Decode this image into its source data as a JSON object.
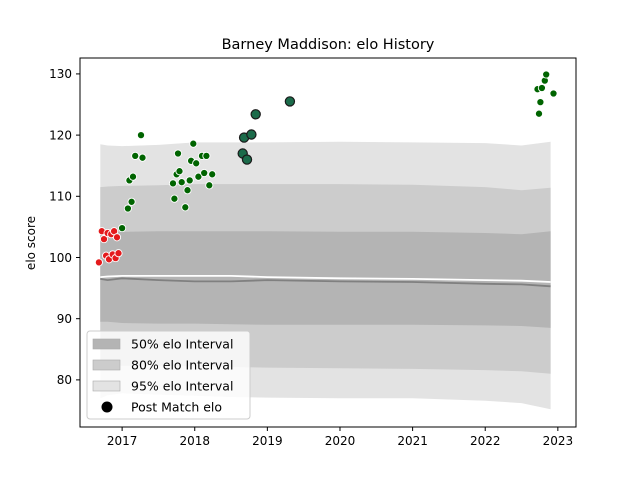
{
  "chart_data": {
    "type": "scatter",
    "title": "Barney Maddison: elo History",
    "xlabel": "",
    "ylabel": "elo score",
    "xlim": [
      2016.42,
      2023.25
    ],
    "ylim": [
      72.3,
      132.6
    ],
    "xticks": [
      2017,
      2018,
      2019,
      2020,
      2021,
      2022,
      2023
    ],
    "xtick_labels": [
      "2017",
      "2018",
      "2019",
      "2020",
      "2021",
      "2022",
      "2023"
    ],
    "yticks": [
      80,
      90,
      100,
      110,
      120,
      130
    ],
    "ytick_labels": [
      "80",
      "90",
      "100",
      "110",
      "120",
      "130"
    ],
    "grid": false,
    "legend_position": "lower-left",
    "legend": [
      {
        "label": "50% elo Interval",
        "kind": "band50"
      },
      {
        "label": "80% elo Interval",
        "kind": "band80"
      },
      {
        "label": "95% elo Interval",
        "kind": "band95"
      },
      {
        "label": "Post Match elo",
        "kind": "marker"
      }
    ],
    "colors": {
      "band50": "#b4b4b4",
      "band80": "#cccccc",
      "band95": "#e3e3e3",
      "median_line": "#808080",
      "mean_line": "#ffffff",
      "loss": "#e41a1c",
      "win": "#006400",
      "big_win": "#1b6b4a"
    },
    "bands": {
      "x": [
        2016.7,
        2016.8,
        2017.0,
        2017.5,
        2018.0,
        2018.5,
        2019.0,
        2020.0,
        2021.0,
        2022.0,
        2022.5,
        2022.9
      ],
      "p95_upper": [
        118.5,
        118.3,
        118.2,
        118.4,
        118.8,
        118.8,
        118.8,
        118.9,
        118.8,
        118.7,
        118.3,
        118.9
      ],
      "p95_lower": [
        77.0,
        77.5,
        77.8,
        77.6,
        77.4,
        77.2,
        77.1,
        77.0,
        77.0,
        76.6,
        76.2,
        75.2
      ],
      "p80_upper": [
        111.5,
        111.6,
        111.7,
        111.8,
        112.0,
        112.0,
        112.0,
        112.0,
        111.9,
        111.5,
        111.0,
        111.4
      ],
      "p80_lower": [
        82.5,
        82.4,
        82.3,
        82.3,
        82.2,
        82.1,
        82.0,
        81.9,
        81.8,
        81.6,
        81.4,
        81.0
      ],
      "p50_upper": [
        104.0,
        104.2,
        104.2,
        104.3,
        104.3,
        104.3,
        104.3,
        104.2,
        104.2,
        104.0,
        103.8,
        104.3
      ],
      "p50_lower": [
        89.5,
        89.5,
        89.3,
        89.2,
        89.2,
        89.1,
        89.0,
        89.0,
        89.0,
        88.9,
        88.8,
        88.5
      ],
      "median": [
        96.5,
        96.3,
        96.6,
        96.3,
        96.1,
        96.1,
        96.3,
        96.1,
        96.0,
        95.7,
        95.6,
        95.3
      ],
      "mean": [
        96.8,
        96.9,
        97.0,
        97.0,
        97.0,
        97.0,
        96.8,
        96.6,
        96.5,
        96.3,
        96.2,
        96.0
      ]
    },
    "series": [
      {
        "kind": "loss",
        "points": [
          [
            2016.68,
            99.2
          ],
          [
            2016.72,
            104.3
          ],
          [
            2016.75,
            103.0
          ],
          [
            2016.78,
            100.3
          ],
          [
            2016.8,
            104.0
          ],
          [
            2016.82,
            99.7
          ],
          [
            2016.85,
            103.8
          ],
          [
            2016.87,
            100.5
          ],
          [
            2016.89,
            104.3
          ],
          [
            2016.91,
            99.9
          ],
          [
            2016.93,
            103.3
          ],
          [
            2016.95,
            100.7
          ]
        ]
      },
      {
        "kind": "win",
        "points": [
          [
            2017.0,
            104.8
          ],
          [
            2017.08,
            108.0
          ],
          [
            2017.1,
            112.6
          ],
          [
            2017.13,
            109.1
          ],
          [
            2017.15,
            113.2
          ],
          [
            2017.18,
            116.6
          ],
          [
            2017.26,
            120.0
          ],
          [
            2017.28,
            116.3
          ],
          [
            2017.7,
            112.1
          ],
          [
            2017.72,
            109.6
          ],
          [
            2017.75,
            113.6
          ],
          [
            2017.77,
            117.0
          ],
          [
            2017.79,
            114.1
          ],
          [
            2017.82,
            112.3
          ],
          [
            2017.87,
            108.2
          ],
          [
            2017.9,
            111.0
          ],
          [
            2017.93,
            112.6
          ],
          [
            2017.95,
            115.8
          ],
          [
            2017.98,
            118.6
          ],
          [
            2018.02,
            115.4
          ],
          [
            2018.05,
            113.2
          ],
          [
            2018.1,
            116.6
          ],
          [
            2018.13,
            113.8
          ],
          [
            2018.16,
            116.6
          ],
          [
            2018.2,
            111.8
          ],
          [
            2018.24,
            113.6
          ],
          [
            2022.72,
            127.5
          ],
          [
            2022.74,
            123.5
          ],
          [
            2022.76,
            125.4
          ],
          [
            2022.78,
            127.7
          ],
          [
            2022.82,
            128.9
          ],
          [
            2022.84,
            129.9
          ],
          [
            2022.94,
            126.8
          ]
        ]
      },
      {
        "kind": "big_win",
        "points": [
          [
            2018.66,
            117.0
          ],
          [
            2018.68,
            119.6
          ],
          [
            2018.72,
            116.0
          ],
          [
            2018.78,
            120.1
          ],
          [
            2018.84,
            123.4
          ],
          [
            2019.31,
            125.5
          ]
        ]
      }
    ]
  }
}
